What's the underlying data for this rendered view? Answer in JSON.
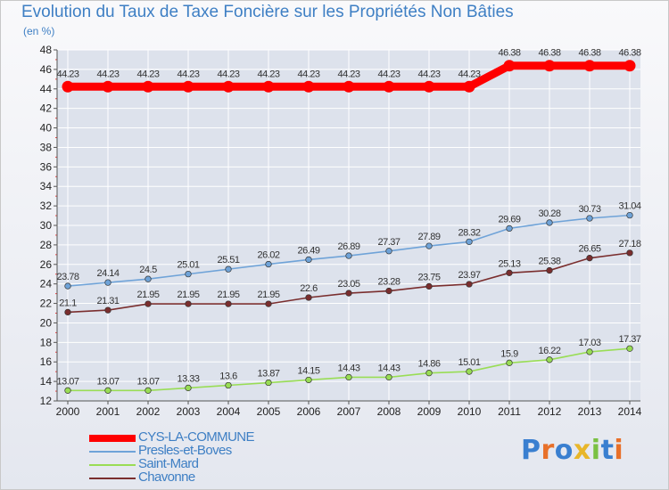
{
  "title": "Evolution du Taux de Taxe Foncière sur les Propriétés Non Bâties",
  "unit": "(en %)",
  "logo": "Proxiti",
  "colors": {
    "title": "#3e7fc4",
    "grid": "#ffffff",
    "axis": "#555555"
  },
  "chart_data": {
    "type": "line",
    "title": "Evolution du Taux de Taxe Foncière sur les Propriétés Non Bâties",
    "ylabel": "(en %)",
    "xlabel": "",
    "ylim": [
      12,
      48
    ],
    "yticks": [
      12,
      14,
      16,
      18,
      20,
      22,
      24,
      26,
      28,
      30,
      32,
      34,
      36,
      38,
      40,
      42,
      44,
      46,
      48
    ],
    "categories": [
      "2000",
      "2001",
      "2002",
      "2003",
      "2004",
      "2005",
      "2006",
      "2007",
      "2008",
      "2009",
      "2010",
      "2011",
      "2012",
      "2013",
      "2014"
    ],
    "legend_position": "bottom-left",
    "series": [
      {
        "name": "CYS-LA-COMMUNE",
        "color": "#ff0000",
        "values": [
          44.23,
          44.23,
          44.23,
          44.23,
          44.23,
          44.23,
          44.23,
          44.23,
          44.23,
          44.23,
          44.23,
          46.38,
          46.38,
          46.38,
          46.38
        ],
        "labels": [
          "44.23",
          "44.23",
          "44.23",
          "44.23",
          "44.23",
          "44.23",
          "44.23",
          "44.23",
          "44.23",
          "44.23",
          "44.23",
          "46.38",
          "46.38",
          "46.38",
          "46.38"
        ]
      },
      {
        "name": "Presles-et-Boves",
        "color": "#6fa3d8",
        "values": [
          23.78,
          24.14,
          24.5,
          25.01,
          25.51,
          26.02,
          26.49,
          26.89,
          27.37,
          27.89,
          28.32,
          29.69,
          30.28,
          30.73,
          31.04
        ],
        "labels": [
          "23.78",
          "24.14",
          "24.5",
          "25.01",
          "25.51",
          "26.02",
          "26.49",
          "26.89",
          "27.37",
          "27.89",
          "28.32",
          "29.69",
          "30.28",
          "30.73",
          "31.04"
        ]
      },
      {
        "name": "Saint-Mard",
        "color": "#99dd55",
        "values": [
          13.07,
          13.07,
          13.07,
          13.33,
          13.6,
          13.87,
          14.15,
          14.43,
          14.43,
          14.86,
          15.01,
          15.9,
          16.22,
          17.03,
          17.37
        ],
        "labels": [
          "13.07",
          "13.07",
          "13.07",
          "13.33",
          "13.6",
          "13.87",
          "14.15",
          "14.43",
          "14.43",
          "14.86",
          "15.01",
          "15.9",
          "16.22",
          "17.03",
          "17.37"
        ]
      },
      {
        "name": "Chavonne",
        "color": "#7a2e2e",
        "values": [
          21.1,
          21.31,
          21.95,
          21.95,
          21.95,
          21.95,
          22.6,
          23.05,
          23.28,
          23.75,
          23.97,
          25.13,
          25.38,
          26.65,
          27.18
        ],
        "labels": [
          "21.1",
          "21.31",
          "21.95",
          "21.95",
          "21.95",
          "21.95",
          "22.6",
          "23.05",
          "23.28",
          "23.75",
          "23.97",
          "25.13",
          "25.38",
          "26.65",
          "27.18"
        ]
      }
    ]
  }
}
